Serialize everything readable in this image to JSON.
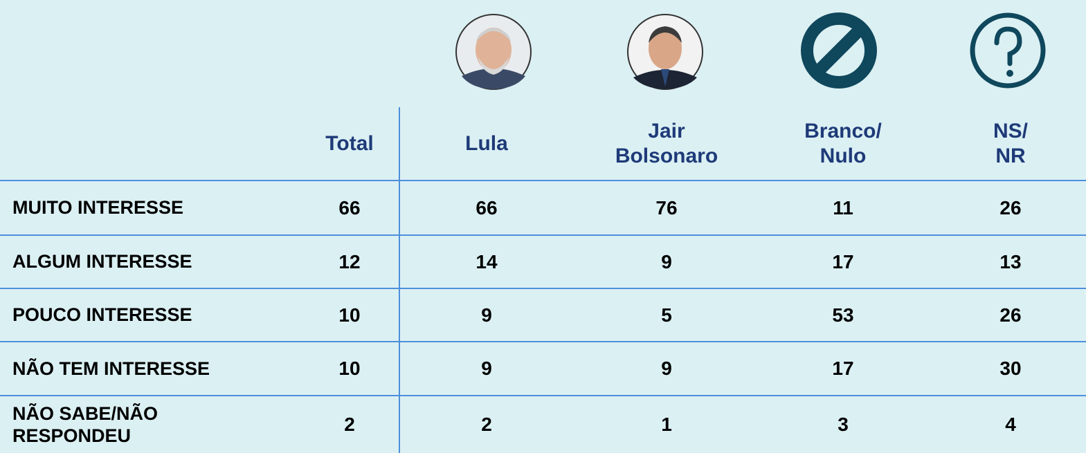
{
  "table": {
    "header": [
      "Total",
      "Lula",
      "Jair\nBolsonaro",
      "Branco/\nNulo",
      "NS/\nNR"
    ],
    "rows": [
      [
        "MUITO INTERESSE",
        "66",
        "66",
        "76",
        "11",
        "26"
      ],
      [
        "ALGUM INTERESSE",
        "12",
        "14",
        "9",
        "17",
        "13"
      ],
      [
        "POUCO INTERESSE",
        "10",
        "9",
        "5",
        "53",
        "26"
      ],
      [
        "NÃO TEM INTERESSE",
        "10",
        "9",
        "9",
        "17",
        "30"
      ],
      [
        "NÃO SABE/NÃO\nRESPONDEU",
        "2",
        "2",
        "1",
        "3",
        "4"
      ]
    ]
  }
}
